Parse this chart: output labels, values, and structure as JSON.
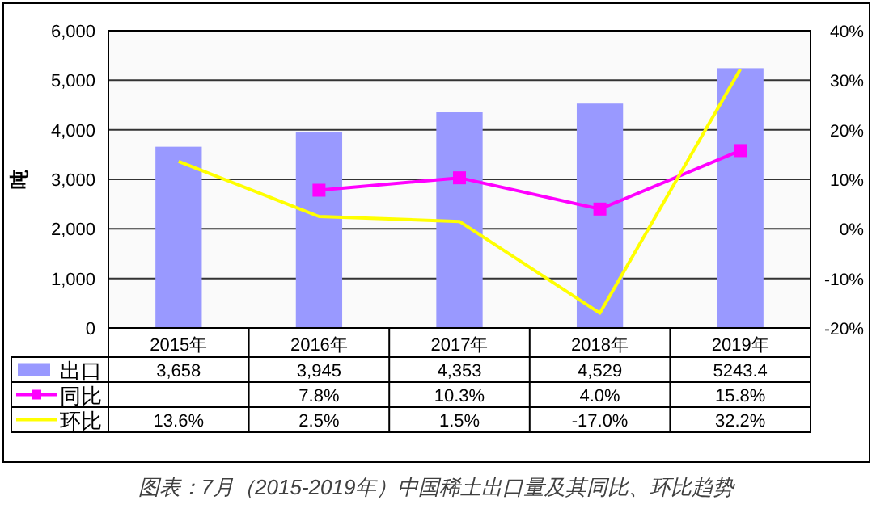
{
  "chart_data": {
    "type": "bar",
    "categories": [
      "2015年",
      "2016年",
      "2017年",
      "2018年",
      "2019年"
    ],
    "ylabel": "吨",
    "series": [
      {
        "name": "出口",
        "color": "#9999ff",
        "values": [
          3658,
          3945,
          4353,
          4529,
          5243.4
        ],
        "value_labels": [
          "3,658",
          "3,945",
          "4,353",
          "4,529",
          "5243.4"
        ]
      },
      {
        "name": "同比",
        "type": "line",
        "axis": "y2",
        "color": "#ff00ff",
        "marker": "square",
        "values": [
          null,
          7.8,
          10.3,
          4.0,
          15.8
        ],
        "value_labels": [
          null,
          "7.8%",
          "10.3%",
          "4.0%",
          "15.8%"
        ]
      },
      {
        "name": "环比",
        "type": "line",
        "axis": "y2",
        "color": "#ffff00",
        "marker": "none",
        "values": [
          13.6,
          2.5,
          1.5,
          -17.0,
          32.2
        ],
        "value_labels": [
          "13.6%",
          "2.5%",
          "1.5%",
          "-17.0%",
          "32.2%"
        ]
      }
    ],
    "ylim": [
      0,
      6000
    ],
    "yticks": [
      0,
      {
        "value": 1000,
        "label": "1,000"
      },
      {
        "value": 2000,
        "label": "2,000"
      },
      {
        "value": 3000,
        "label": "3,000"
      },
      {
        "value": 4000,
        "label": "4,000"
      },
      {
        "value": 5000,
        "label": "5,000"
      },
      {
        "value": 6000,
        "label": "6,000"
      }
    ],
    "y2lim": [
      -20,
      40
    ],
    "y2ticks": [
      {
        "value": -20,
        "label": "-20%"
      },
      {
        "value": -10,
        "label": "-10%"
      },
      {
        "value": 0,
        "label": "0%"
      },
      {
        "value": 10,
        "label": "10%"
      },
      {
        "value": 20,
        "label": "20%"
      },
      {
        "value": 30,
        "label": "30%"
      },
      {
        "value": 40,
        "label": "40%"
      }
    ],
    "grid": "y",
    "legend": "bottom",
    "annotations": [
      "图表：7月（2015-2019年）中国稀土出口量及其同比、环比趋势"
    ]
  }
}
